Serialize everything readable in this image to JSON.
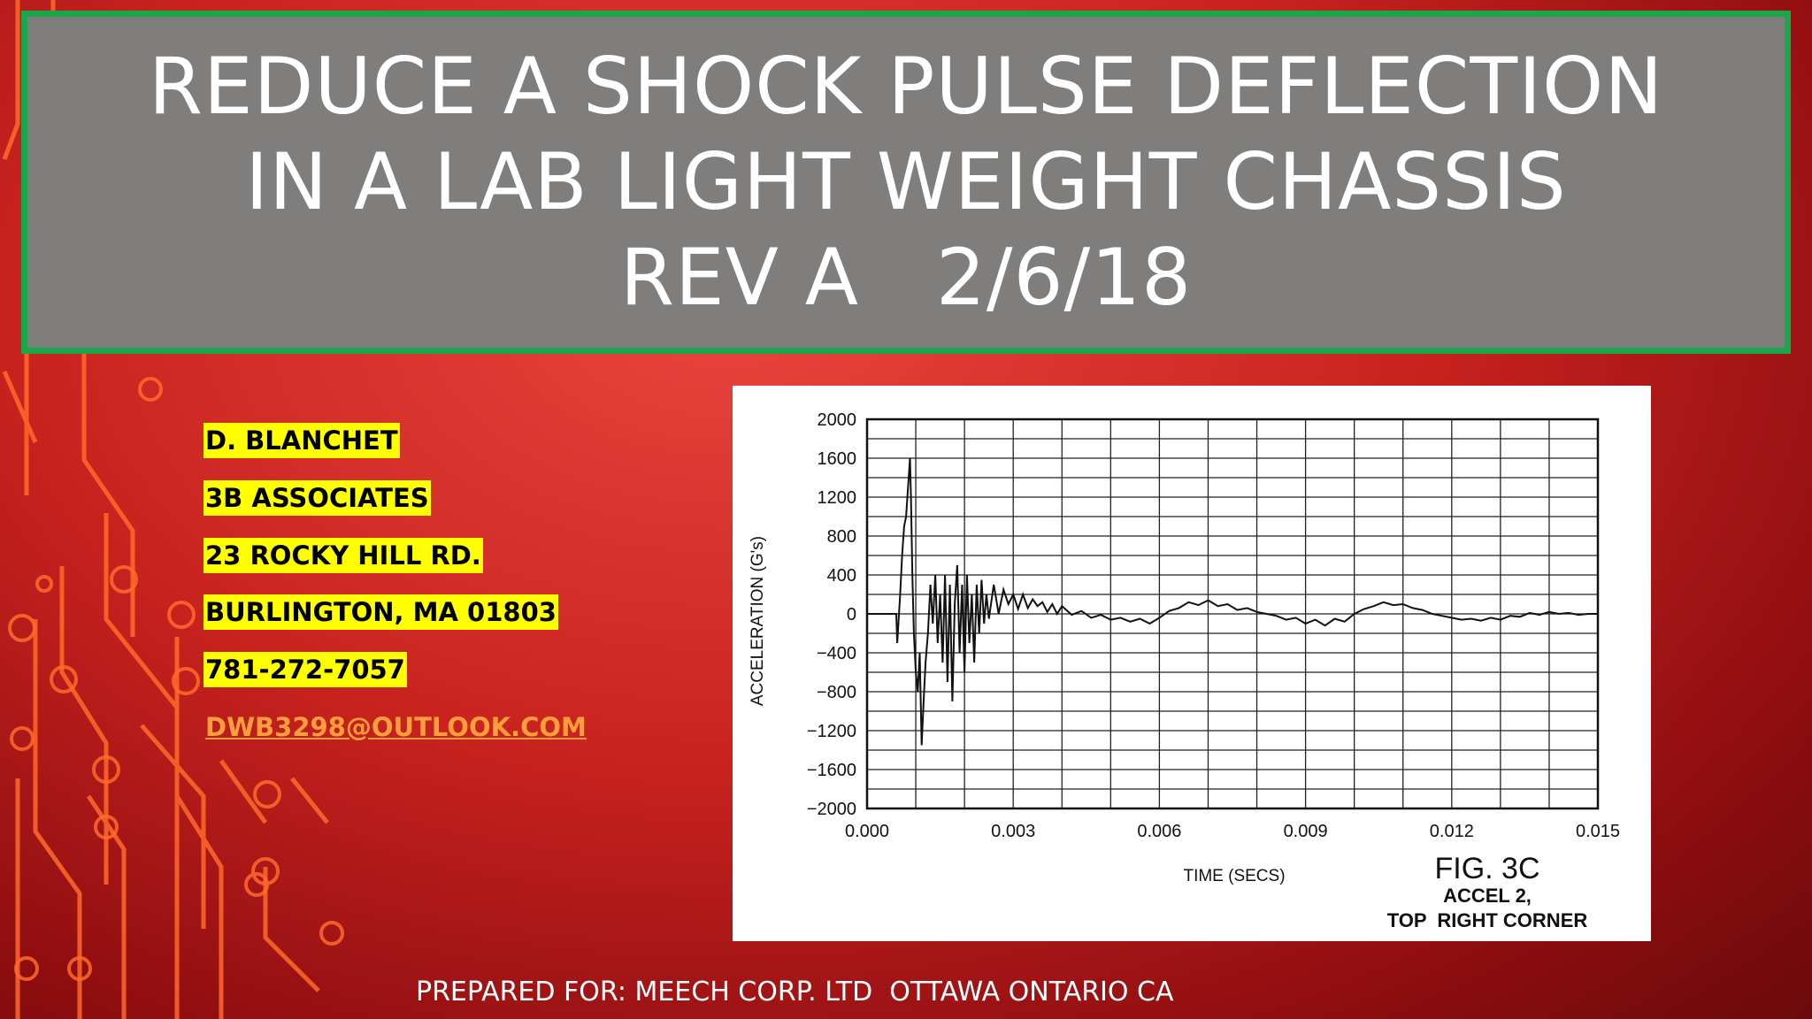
{
  "title": {
    "lines": [
      "REDUCE A SHOCK PULSE DEFLECTION",
      "IN A LAB LIGHT WEIGHT CHASSIS",
      "REV A   2/6/18"
    ]
  },
  "contact": {
    "name": "D. BLANCHET",
    "company": "3B ASSOCIATES",
    "street": "23 ROCKY HILL RD.",
    "city": "BURLINGTON, MA 01803",
    "phone": "781-272-7057",
    "email": "DWB3298@OUTLOOK.COM"
  },
  "footer": "PREPARED FOR: MEECH CORP. LTD  OTTAWA ONTARIO CA",
  "colors": {
    "title_bg": "#807e7c",
    "title_border": "#1aa64a",
    "highlight": "#ffff00",
    "email": "#ff9e3a",
    "circuit": "#ff6a2a"
  },
  "chart_data": {
    "type": "line",
    "xlabel": "TIME (SECS)",
    "ylabel": "ACCELERATION (G's)",
    "xlim": [
      0,
      0.015
    ],
    "ylim": [
      -2000,
      2000
    ],
    "x_ticks": [
      "0.000",
      "0.003",
      "0.006",
      "0.009",
      "0.012",
      "0.015"
    ],
    "y_ticks": [
      "2000",
      "1600",
      "1200",
      "800",
      "400",
      "0",
      "−400",
      "−800",
      "−1200",
      "−1600",
      "−2000"
    ],
    "grid": true,
    "annotation": {
      "fig": "FIG. 3C",
      "line1": "ACCEL 2,",
      "line2": "TOP  RIGHT CORNER"
    },
    "series": [
      {
        "points": [
          [
            0.0,
            0
          ],
          [
            0.0006,
            0
          ],
          [
            0.00062,
            -300
          ],
          [
            0.00068,
            200
          ],
          [
            0.00072,
            600
          ],
          [
            0.00076,
            900
          ],
          [
            0.0008,
            1000
          ],
          [
            0.00084,
            1300
          ],
          [
            0.00088,
            1600
          ],
          [
            0.0009,
            1200
          ],
          [
            0.00093,
            400
          ],
          [
            0.00096,
            -200
          ],
          [
            0.001,
            -600
          ],
          [
            0.00104,
            -800
          ],
          [
            0.00108,
            -400
          ],
          [
            0.00112,
            -1350
          ],
          [
            0.00116,
            -900
          ],
          [
            0.0012,
            -500
          ],
          [
            0.00125,
            -200
          ],
          [
            0.0013,
            300
          ],
          [
            0.00135,
            -100
          ],
          [
            0.0014,
            400
          ],
          [
            0.00145,
            -300
          ],
          [
            0.0015,
            200
          ],
          [
            0.00155,
            -500
          ],
          [
            0.0016,
            400
          ],
          [
            0.00165,
            -700
          ],
          [
            0.0017,
            300
          ],
          [
            0.00175,
            -900
          ],
          [
            0.0018,
            100
          ],
          [
            0.00185,
            500
          ],
          [
            0.0019,
            -400
          ],
          [
            0.00195,
            300
          ],
          [
            0.002,
            -600
          ],
          [
            0.00205,
            400
          ],
          [
            0.0021,
            -300
          ],
          [
            0.00215,
            200
          ],
          [
            0.0022,
            -500
          ],
          [
            0.00225,
            300
          ],
          [
            0.0023,
            -200
          ],
          [
            0.00235,
            350
          ],
          [
            0.0024,
            -100
          ],
          [
            0.00245,
            200
          ],
          [
            0.0025,
            -50
          ],
          [
            0.0026,
            300
          ],
          [
            0.0027,
            0
          ],
          [
            0.0028,
            250
          ],
          [
            0.0029,
            100
          ],
          [
            0.003,
            200
          ],
          [
            0.0031,
            50
          ],
          [
            0.0032,
            200
          ],
          [
            0.0033,
            60
          ],
          [
            0.0034,
            150
          ],
          [
            0.0035,
            80
          ],
          [
            0.0036,
            120
          ],
          [
            0.0037,
            20
          ],
          [
            0.0038,
            100
          ],
          [
            0.0039,
            0
          ],
          [
            0.004,
            80
          ],
          [
            0.0042,
            -10
          ],
          [
            0.0044,
            30
          ],
          [
            0.0046,
            -40
          ],
          [
            0.0048,
            -10
          ],
          [
            0.005,
            -60
          ],
          [
            0.0052,
            -40
          ],
          [
            0.0054,
            -80
          ],
          [
            0.0056,
            -50
          ],
          [
            0.0058,
            -100
          ],
          [
            0.006,
            -40
          ],
          [
            0.0062,
            30
          ],
          [
            0.0064,
            60
          ],
          [
            0.0066,
            120
          ],
          [
            0.0068,
            90
          ],
          [
            0.007,
            140
          ],
          [
            0.0072,
            80
          ],
          [
            0.0074,
            100
          ],
          [
            0.0076,
            40
          ],
          [
            0.0078,
            60
          ],
          [
            0.008,
            20
          ],
          [
            0.0082,
            0
          ],
          [
            0.0084,
            -20
          ],
          [
            0.0086,
            -60
          ],
          [
            0.0088,
            -40
          ],
          [
            0.009,
            -100
          ],
          [
            0.0092,
            -60
          ],
          [
            0.0094,
            -120
          ],
          [
            0.0096,
            -50
          ],
          [
            0.0098,
            -80
          ],
          [
            0.01,
            0
          ],
          [
            0.0102,
            50
          ],
          [
            0.0104,
            80
          ],
          [
            0.0106,
            120
          ],
          [
            0.0108,
            90
          ],
          [
            0.011,
            100
          ],
          [
            0.0112,
            60
          ],
          [
            0.0114,
            40
          ],
          [
            0.0116,
            0
          ],
          [
            0.0118,
            -20
          ],
          [
            0.012,
            -40
          ],
          [
            0.0122,
            -60
          ],
          [
            0.0124,
            -50
          ],
          [
            0.0126,
            -70
          ],
          [
            0.0128,
            -40
          ],
          [
            0.013,
            -60
          ],
          [
            0.0132,
            -20
          ],
          [
            0.0134,
            -30
          ],
          [
            0.0136,
            10
          ],
          [
            0.0138,
            -10
          ],
          [
            0.014,
            20
          ],
          [
            0.0142,
            0
          ],
          [
            0.0144,
            10
          ],
          [
            0.0146,
            -10
          ],
          [
            0.0148,
            0
          ],
          [
            0.015,
            0
          ]
        ]
      }
    ]
  }
}
